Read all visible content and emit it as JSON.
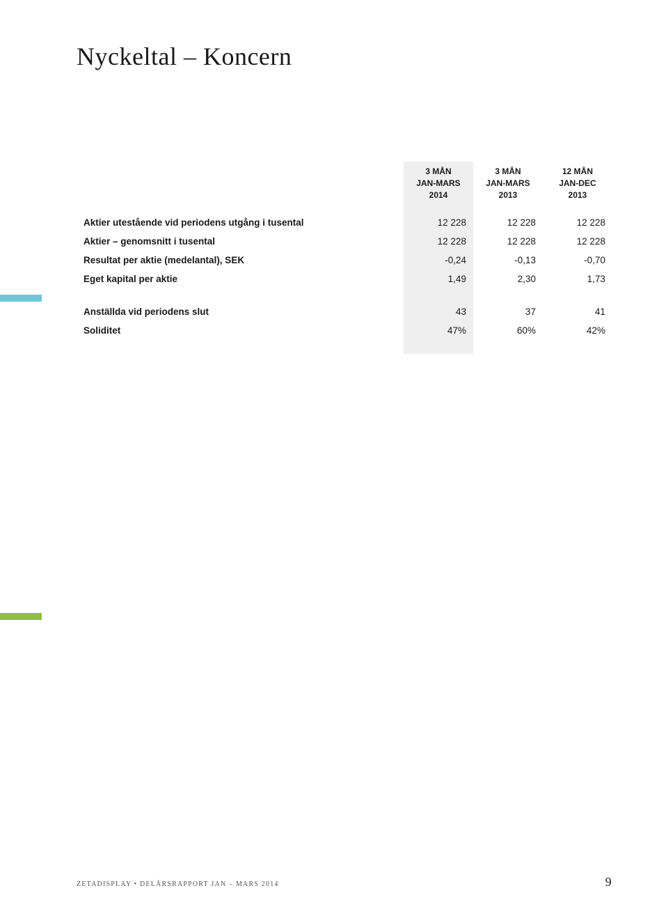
{
  "title": "Nyckeltal – Koncern",
  "columns": [
    {
      "line1": "3 MÅN",
      "line2": "JAN-MARS",
      "line3": "2014"
    },
    {
      "line1": "3 MÅN",
      "line2": "JAN-MARS",
      "line3": "2013"
    },
    {
      "line1": "12 MÅN",
      "line2": "JAN-DEC",
      "line3": "2013"
    }
  ],
  "section1": [
    {
      "label": "Aktier utestående vid periodens utgång i tusental",
      "c1": "12 228",
      "c2": "12 228",
      "c3": "12 228"
    },
    {
      "label": "Aktier – genomsnitt i tusental",
      "c1": "12 228",
      "c2": "12 228",
      "c3": "12 228"
    },
    {
      "label": "Resultat per aktie (medelantal), SEK",
      "c1": "-0,24",
      "c2": "-0,13",
      "c3": "-0,70"
    },
    {
      "label": "Eget kapital per aktie",
      "c1": "1,49",
      "c2": "2,30",
      "c3": "1,73"
    }
  ],
  "section2": [
    {
      "label": "Anställda vid periodens slut",
      "c1": "43",
      "c2": "37",
      "c3": "41"
    },
    {
      "label": "Soliditet",
      "c1": "47%",
      "c2": "60%",
      "c3": "42%"
    }
  ],
  "footer": {
    "text": "ZETADISPLAY • DELÅRSRAPPORT JAN – MARS 2014",
    "page": "9"
  },
  "colors": {
    "highlight_bg": "#efefef",
    "accent_blue": "#6fc6d6",
    "accent_green": "#8fbf3c",
    "text": "#1a1a1a",
    "footer_text": "#555555"
  },
  "typography": {
    "title_fontsize": 36,
    "header_fontsize": 12,
    "cell_fontsize": 13.5,
    "footer_fontsize": 10,
    "page_number_fontsize": 18
  }
}
